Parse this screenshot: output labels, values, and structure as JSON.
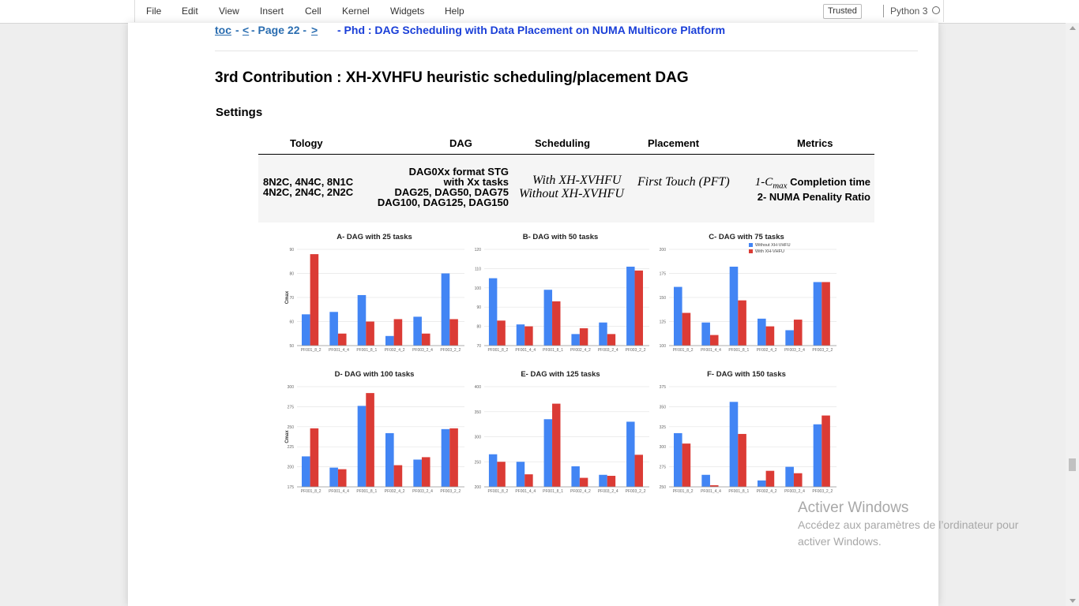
{
  "menu": {
    "items": [
      "File",
      "Edit",
      "View",
      "Insert",
      "Cell",
      "Kernel",
      "Widgets",
      "Help"
    ],
    "trusted": "Trusted",
    "kernel": "Python 3"
  },
  "nav": {
    "toc": "toc",
    "sep1": "-",
    "prev": "<",
    "page": "- Page 22 -",
    "next": ">",
    "title": "- Phd : DAG Scheduling with Data Placement on NUMA Multicore Platform"
  },
  "heading": "3rd Contribution : XH-XVHFU heuristic scheduling/placement DAG",
  "subheading": "Settings",
  "table": {
    "headers": [
      "Tology",
      "DAG",
      "Scheduling",
      "Placement",
      "Metrics"
    ],
    "topology": [
      "8N2C, 4N4C, 8N1C",
      "4N2C, 2N4C, 2N2C"
    ],
    "dag": [
      "DAG0Xx format STG",
      "with Xx tasks",
      "DAG25, DAG50, DAG75",
      "DAG100, DAG125, DAG150"
    ],
    "scheduling": [
      "With XH-XVHFU",
      "Without XH-XVHFU"
    ],
    "placement": "First Touch (PFT)",
    "metrics": {
      "m1_prefix": "1-C",
      "m1_sub": "max",
      "m1_suffix": " Completion time",
      "m2": "2- NUMA Penality Ratio"
    }
  },
  "colors": {
    "without": "#4285f4",
    "with": "#db3b35"
  },
  "chart_data": [
    {
      "type": "bar",
      "title": "A- DAG with 25 tasks",
      "ylabel": "Cmax",
      "ylim": [
        50,
        90
      ],
      "yticks": [
        50,
        60,
        70,
        80,
        90
      ],
      "categories": [
        "PF001_8_2",
        "PF001_4_4",
        "PF001_8_1",
        "PF002_4_2",
        "PF003_2_4",
        "PF003_2_2"
      ],
      "series": [
        {
          "name": "Without XH-VHFU",
          "values": [
            63,
            64,
            71,
            54,
            62,
            80
          ]
        },
        {
          "name": "With XH-VHFU",
          "values": [
            88,
            55,
            60,
            61,
            55,
            61
          ]
        }
      ]
    },
    {
      "type": "bar",
      "title": "B- DAG with 50 tasks",
      "ylabel": "",
      "ylim": [
        70,
        120
      ],
      "yticks": [
        70,
        80,
        90,
        100,
        110,
        120
      ],
      "categories": [
        "PF001_8_2",
        "PF001_4_4",
        "PF001_8_1",
        "PF002_4_2",
        "PF003_2_4",
        "PF003_2_2"
      ],
      "series": [
        {
          "name": "Without XH-VHFU",
          "values": [
            105,
            81,
            99,
            76,
            82,
            111
          ]
        },
        {
          "name": "With XH-VHFU",
          "values": [
            83,
            80,
            93,
            79,
            76,
            109
          ]
        }
      ]
    },
    {
      "type": "bar",
      "title": "C- DAG with 75 tasks",
      "ylabel": "",
      "ylim": [
        100,
        200
      ],
      "yticks": [
        100,
        125,
        150,
        175,
        200
      ],
      "categories": [
        "PF001_8_2",
        "PF001_4_4",
        "PF001_8_1",
        "PF002_4_2",
        "PF003_2_4",
        "PF003_2_2"
      ],
      "legend": {
        "position": "top-right",
        "entries": [
          "Without XH-VHFU",
          "With XH-VHFU"
        ]
      },
      "series": [
        {
          "name": "Without XH-VHFU",
          "values": [
            161,
            124,
            182,
            128,
            116,
            166
          ]
        },
        {
          "name": "With XH-VHFU",
          "values": [
            134,
            111,
            147,
            120,
            127,
            166
          ]
        }
      ]
    },
    {
      "type": "bar",
      "title": "D- DAG with 100 tasks",
      "ylabel": "Cmax",
      "ylim": [
        175,
        300
      ],
      "yticks": [
        175,
        200,
        225,
        250,
        275,
        300
      ],
      "categories": [
        "PF001_8_2",
        "PF001_4_4",
        "PF001_8_1",
        "PF002_4_2",
        "PF003_2_4",
        "PF003_2_2"
      ],
      "series": [
        {
          "name": "Without XH-VHFU",
          "values": [
            213,
            199,
            276,
            242,
            209,
            247
          ]
        },
        {
          "name": "With XH-VHFU",
          "values": [
            248,
            197,
            292,
            202,
            212,
            248
          ]
        }
      ]
    },
    {
      "type": "bar",
      "title": "E- DAG with 125 tasks",
      "ylabel": "",
      "ylim": [
        200,
        400
      ],
      "yticks": [
        200,
        250,
        300,
        350,
        400
      ],
      "categories": [
        "PF001_8_2",
        "PF001_4_4",
        "PF001_8_1",
        "PF002_4_2",
        "PF003_2_4",
        "PF003_2_2"
      ],
      "series": [
        {
          "name": "Without XH-VHFU",
          "values": [
            265,
            250,
            335,
            241,
            224,
            330
          ]
        },
        {
          "name": "With XH-VHFU",
          "values": [
            250,
            225,
            366,
            218,
            222,
            264
          ]
        }
      ]
    },
    {
      "type": "bar",
      "title": "F- DAG with 150 tasks",
      "ylabel": "",
      "ylim": [
        250,
        375
      ],
      "yticks": [
        250,
        275,
        300,
        325,
        350,
        375
      ],
      "categories": [
        "PF001_8_2",
        "PF001_4_4",
        "PF001_8_1",
        "PF002_4_2",
        "PF003_2_4",
        "PF003_2_2"
      ],
      "series": [
        {
          "name": "Without XH-VHFU",
          "values": [
            317,
            265,
            356,
            258,
            275,
            328
          ]
        },
        {
          "name": "With XH-VHFU",
          "values": [
            304,
            252,
            316,
            270,
            267,
            339
          ]
        }
      ]
    }
  ],
  "watermark": {
    "title": "Activer Windows",
    "subtitle": "Accédez aux paramètres de l’ordinateur pour activer Windows."
  }
}
